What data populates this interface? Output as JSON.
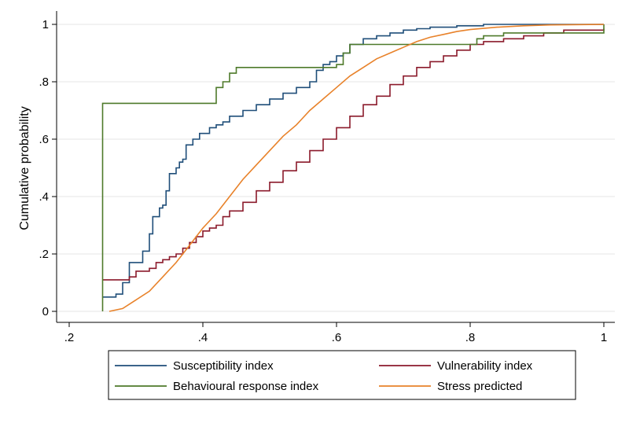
{
  "chart_data": {
    "type": "line",
    "title": "",
    "xlabel": "",
    "ylabel": "Cumulative probability",
    "xlim": [
      0.2,
      1.0
    ],
    "ylim": [
      0,
      1
    ],
    "x_ticks": [
      0.2,
      0.4,
      0.6,
      0.8,
      1.0
    ],
    "x_tick_labels": [
      ".2",
      ".4",
      ".6",
      ".8",
      "1"
    ],
    "y_ticks": [
      0,
      0.2,
      0.4,
      0.6,
      0.8,
      1.0
    ],
    "y_tick_labels": [
      "0",
      ".2",
      ".4",
      ".6",
      ".8",
      "1"
    ],
    "grid": "horizontal",
    "legend_position": "bottom",
    "series": [
      {
        "name": "Susceptibility index",
        "color": "#1f4e79",
        "step": true,
        "points": [
          [
            0.25,
            0.05
          ],
          [
            0.27,
            0.06
          ],
          [
            0.28,
            0.1
          ],
          [
            0.29,
            0.17
          ],
          [
            0.31,
            0.21
          ],
          [
            0.32,
            0.27
          ],
          [
            0.325,
            0.33
          ],
          [
            0.335,
            0.36
          ],
          [
            0.34,
            0.37
          ],
          [
            0.345,
            0.42
          ],
          [
            0.35,
            0.48
          ],
          [
            0.36,
            0.5
          ],
          [
            0.365,
            0.52
          ],
          [
            0.37,
            0.53
          ],
          [
            0.375,
            0.58
          ],
          [
            0.385,
            0.6
          ],
          [
            0.395,
            0.62
          ],
          [
            0.41,
            0.64
          ],
          [
            0.42,
            0.65
          ],
          [
            0.43,
            0.66
          ],
          [
            0.44,
            0.68
          ],
          [
            0.46,
            0.7
          ],
          [
            0.48,
            0.72
          ],
          [
            0.5,
            0.74
          ],
          [
            0.52,
            0.76
          ],
          [
            0.54,
            0.78
          ],
          [
            0.56,
            0.8
          ],
          [
            0.57,
            0.84
          ],
          [
            0.58,
            0.86
          ],
          [
            0.59,
            0.87
          ],
          [
            0.6,
            0.89
          ],
          [
            0.61,
            0.9
          ],
          [
            0.62,
            0.93
          ],
          [
            0.64,
            0.95
          ],
          [
            0.66,
            0.96
          ],
          [
            0.68,
            0.97
          ],
          [
            0.7,
            0.98
          ],
          [
            0.72,
            0.985
          ],
          [
            0.74,
            0.99
          ],
          [
            0.78,
            0.995
          ],
          [
            0.82,
            1.0
          ],
          [
            1.0,
            1.0
          ]
        ]
      },
      {
        "name": "Vulnerability index",
        "color": "#8b1a2b",
        "step": true,
        "points": [
          [
            0.25,
            0.11
          ],
          [
            0.29,
            0.12
          ],
          [
            0.3,
            0.14
          ],
          [
            0.32,
            0.15
          ],
          [
            0.33,
            0.17
          ],
          [
            0.34,
            0.18
          ],
          [
            0.35,
            0.19
          ],
          [
            0.36,
            0.2
          ],
          [
            0.37,
            0.22
          ],
          [
            0.38,
            0.24
          ],
          [
            0.39,
            0.26
          ],
          [
            0.4,
            0.28
          ],
          [
            0.41,
            0.29
          ],
          [
            0.42,
            0.3
          ],
          [
            0.43,
            0.33
          ],
          [
            0.44,
            0.35
          ],
          [
            0.46,
            0.38
          ],
          [
            0.48,
            0.42
          ],
          [
            0.5,
            0.45
          ],
          [
            0.52,
            0.49
          ],
          [
            0.54,
            0.52
          ],
          [
            0.56,
            0.56
          ],
          [
            0.58,
            0.6
          ],
          [
            0.6,
            0.64
          ],
          [
            0.62,
            0.68
          ],
          [
            0.64,
            0.72
          ],
          [
            0.66,
            0.75
          ],
          [
            0.68,
            0.79
          ],
          [
            0.7,
            0.82
          ],
          [
            0.72,
            0.85
          ],
          [
            0.74,
            0.87
          ],
          [
            0.76,
            0.89
          ],
          [
            0.78,
            0.91
          ],
          [
            0.8,
            0.93
          ],
          [
            0.82,
            0.94
          ],
          [
            0.85,
            0.95
          ],
          [
            0.88,
            0.96
          ],
          [
            0.91,
            0.97
          ],
          [
            0.94,
            0.98
          ],
          [
            1.0,
            0.985
          ]
        ]
      },
      {
        "name": "Behavioural response index",
        "color": "#4e7a2a",
        "step": true,
        "points": [
          [
            0.25,
            0.0
          ],
          [
            0.25,
            0.725
          ],
          [
            0.42,
            0.78
          ],
          [
            0.43,
            0.8
          ],
          [
            0.44,
            0.83
          ],
          [
            0.45,
            0.85
          ],
          [
            0.5,
            0.85
          ],
          [
            0.6,
            0.85
          ],
          [
            0.6,
            0.86
          ],
          [
            0.61,
            0.9
          ],
          [
            0.62,
            0.93
          ],
          [
            0.68,
            0.93
          ],
          [
            0.7,
            0.93
          ],
          [
            0.8,
            0.93
          ],
          [
            0.81,
            0.95
          ],
          [
            0.82,
            0.96
          ],
          [
            0.85,
            0.97
          ],
          [
            1.0,
            0.97
          ],
          [
            1.0,
            1.0
          ]
        ]
      },
      {
        "name": "Stress predicted",
        "color": "#e8822a",
        "step": false,
        "points": [
          [
            0.26,
            0.0
          ],
          [
            0.28,
            0.01
          ],
          [
            0.3,
            0.04
          ],
          [
            0.32,
            0.07
          ],
          [
            0.34,
            0.12
          ],
          [
            0.36,
            0.17
          ],
          [
            0.38,
            0.23
          ],
          [
            0.4,
            0.29
          ],
          [
            0.42,
            0.34
          ],
          [
            0.44,
            0.4
          ],
          [
            0.46,
            0.46
          ],
          [
            0.48,
            0.51
          ],
          [
            0.5,
            0.56
          ],
          [
            0.52,
            0.61
          ],
          [
            0.54,
            0.65
          ],
          [
            0.56,
            0.7
          ],
          [
            0.58,
            0.74
          ],
          [
            0.6,
            0.78
          ],
          [
            0.62,
            0.82
          ],
          [
            0.64,
            0.85
          ],
          [
            0.66,
            0.88
          ],
          [
            0.68,
            0.9
          ],
          [
            0.7,
            0.92
          ],
          [
            0.72,
            0.94
          ],
          [
            0.74,
            0.955
          ],
          [
            0.76,
            0.965
          ],
          [
            0.78,
            0.975
          ],
          [
            0.8,
            0.982
          ],
          [
            0.84,
            0.99
          ],
          [
            0.88,
            0.995
          ],
          [
            0.92,
            0.998
          ],
          [
            1.0,
            1.0
          ]
        ]
      }
    ]
  }
}
